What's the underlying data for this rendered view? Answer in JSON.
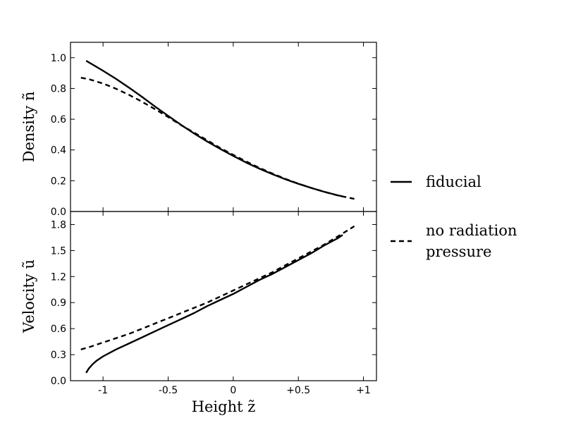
{
  "chart_data": [
    {
      "type": "line",
      "ylabel": "Density  ñ",
      "xlim": [
        -1.25,
        1.1
      ],
      "ylim": [
        0,
        1.1
      ],
      "yticks": [
        0.0,
        0.2,
        0.4,
        0.6,
        0.8,
        1.0
      ],
      "ytick_labels": [
        "0.0",
        "0.2",
        "0.4",
        "0.6",
        "0.8",
        "1.0"
      ],
      "series": [
        {
          "name": "fiducial",
          "style": "solid",
          "x": [
            -1.13,
            -1.0,
            -0.9,
            -0.8,
            -0.7,
            -0.6,
            -0.5,
            -0.4,
            -0.3,
            -0.2,
            -0.1,
            0.0,
            0.1,
            0.2,
            0.3,
            0.4,
            0.5,
            0.6,
            0.7,
            0.8,
            0.84
          ],
          "y": [
            0.98,
            0.915,
            0.862,
            0.805,
            0.745,
            0.682,
            0.622,
            0.563,
            0.507,
            0.455,
            0.407,
            0.361,
            0.318,
            0.279,
            0.243,
            0.21,
            0.18,
            0.153,
            0.128,
            0.106,
            0.098
          ]
        },
        {
          "name": "no radiation pressure",
          "style": "dashed",
          "x": [
            -1.17,
            -1.1,
            -1.0,
            -0.9,
            -0.8,
            -0.7,
            -0.6,
            -0.5,
            -0.4,
            -0.3,
            -0.2,
            -0.1,
            0.0,
            0.1,
            0.2,
            0.3,
            0.4,
            0.5,
            0.6,
            0.7,
            0.8,
            0.93
          ],
          "y": [
            0.87,
            0.858,
            0.832,
            0.798,
            0.758,
            0.713,
            0.665,
            0.614,
            0.561,
            0.513,
            0.463,
            0.413,
            0.368,
            0.325,
            0.284,
            0.247,
            0.212,
            0.181,
            0.153,
            0.128,
            0.105,
            0.082
          ]
        }
      ]
    },
    {
      "type": "line",
      "xlabel": "Height   z̃",
      "ylabel": "Velocity   ũ",
      "xlim": [
        -1.25,
        1.1
      ],
      "ylim": [
        0,
        1.95
      ],
      "xticks": [
        -1,
        -0.5,
        0,
        0.5,
        1
      ],
      "xtick_labels": [
        "-1",
        "-0.5",
        "0",
        "+0.5",
        "+1"
      ],
      "yticks": [
        0.0,
        0.3,
        0.6,
        0.9,
        1.2,
        1.5,
        1.8
      ],
      "ytick_labels": [
        "0.0",
        "0.3",
        "0.6",
        "0.9",
        "1.2",
        "1.5",
        "1.8"
      ],
      "series": [
        {
          "name": "fiducial",
          "style": "solid",
          "x": [
            -1.13,
            -1.11,
            -1.08,
            -1.05,
            -1.0,
            -0.9,
            -0.8,
            -0.7,
            -0.6,
            -0.5,
            -0.4,
            -0.3,
            -0.2,
            -0.1,
            0.0,
            0.1,
            0.2,
            0.3,
            0.4,
            0.5,
            0.6,
            0.7,
            0.8,
            0.84
          ],
          "y": [
            0.09,
            0.14,
            0.19,
            0.23,
            0.28,
            0.36,
            0.43,
            0.5,
            0.57,
            0.64,
            0.71,
            0.78,
            0.86,
            0.93,
            1.0,
            1.08,
            1.16,
            1.23,
            1.31,
            1.39,
            1.47,
            1.56,
            1.64,
            1.68
          ]
        },
        {
          "name": "no radiation pressure",
          "style": "dashed",
          "x": [
            -1.17,
            -1.1,
            -1.0,
            -0.9,
            -0.8,
            -0.7,
            -0.6,
            -0.5,
            -0.4,
            -0.3,
            -0.2,
            -0.1,
            0.0,
            0.1,
            0.2,
            0.3,
            0.4,
            0.5,
            0.6,
            0.7,
            0.8,
            0.93
          ],
          "y": [
            0.36,
            0.39,
            0.44,
            0.49,
            0.54,
            0.6,
            0.66,
            0.72,
            0.78,
            0.84,
            0.9,
            0.97,
            1.04,
            1.11,
            1.18,
            1.25,
            1.33,
            1.41,
            1.49,
            1.57,
            1.66,
            1.78
          ]
        }
      ]
    }
  ],
  "legend": {
    "items": [
      {
        "style": "solid",
        "lines": [
          "fiducial"
        ]
      },
      {
        "style": "dashed",
        "lines": [
          "no radiation",
          "pressure"
        ]
      }
    ]
  }
}
